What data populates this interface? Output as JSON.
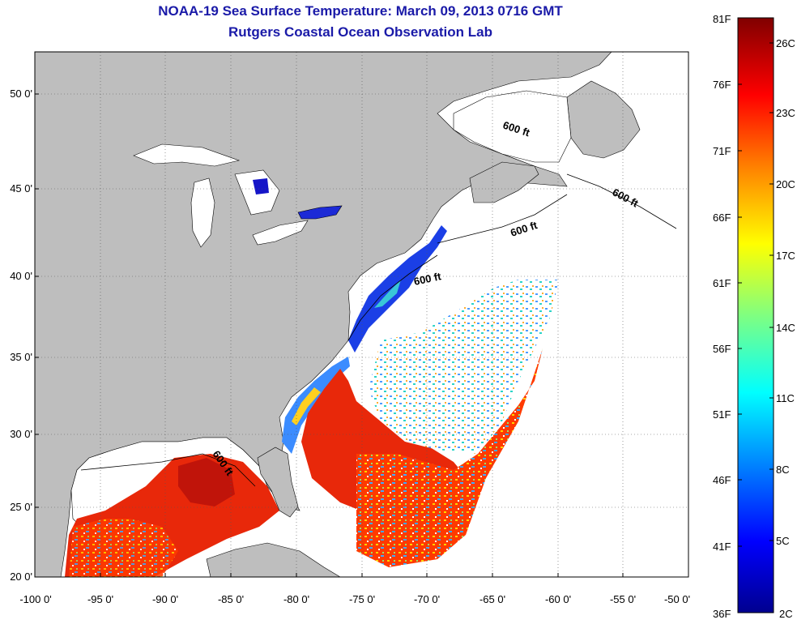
{
  "title": "NOAA-19 Sea Surface Temperature:  March 09, 2013 0716 GMT",
  "subtitle": "Rutgers Coastal Ocean Observation Lab",
  "map": {
    "y_ticks": [
      "50 0'",
      "45 0'",
      "40 0'",
      "35 0'",
      "30 0'",
      "25 0'",
      "20 0'"
    ],
    "x_ticks": [
      "-100 0'",
      "-95 0'",
      "-90 0'",
      "-85 0'",
      "-80 0'",
      "-75 0'",
      "-70 0'",
      "-65 0'",
      "-60 0'",
      "-55 0'",
      "-50 0'"
    ],
    "lon_range": [
      -100,
      -50
    ],
    "lat_range": [
      20,
      52.5
    ],
    "isobath_labels": [
      "600 ft",
      "600 ft",
      "600 ft",
      "600 ft",
      "600 ft"
    ],
    "land_color": "#bebebe",
    "ocean_no_data_color": "#ffffff"
  },
  "colorbar": {
    "fahrenheit_labels": [
      "81F",
      "76F",
      "71F",
      "66F",
      "61F",
      "56F",
      "51F",
      "46F",
      "41F",
      "36F"
    ],
    "celsius_labels": [
      "26C",
      "23C",
      "20C",
      "17C",
      "14C",
      "11C",
      "8C",
      "5C",
      "2C"
    ],
    "colormap": "jet",
    "colors": [
      "#00008f",
      "#0000ff",
      "#0080ff",
      "#00ffff",
      "#80ff80",
      "#ffff00",
      "#ff8000",
      "#ff0000",
      "#800000"
    ]
  }
}
